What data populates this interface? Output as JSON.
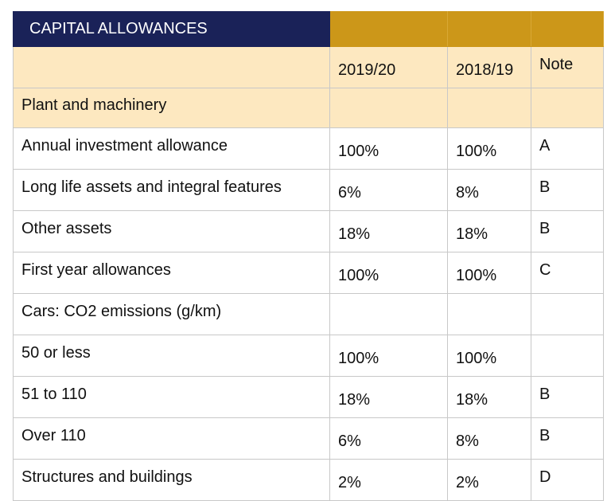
{
  "title": "CAPITAL ALLOWANCES",
  "headers": [
    "",
    "2019/20",
    "2018/19",
    "Note"
  ],
  "section": "Plant and machinery",
  "colors": {
    "title_bg": "#1a2258",
    "accent": "#cc9719",
    "subheader_bg": "#fde8c0"
  },
  "rows": [
    {
      "label": "Annual investment allowance",
      "y1": "100%",
      "y2": "100%",
      "note": "A"
    },
    {
      "label": "Long life assets and integral features",
      "y1": "6%",
      "y2": "8%",
      "note": "B"
    },
    {
      "label": "Other assets",
      "y1": "18%",
      "y2": "18%",
      "note": "B"
    },
    {
      "label": "First year allowances",
      "y1": "100%",
      "y2": "100%",
      "note": "C"
    },
    {
      "label": "Cars: CO2 emissions (g/km)",
      "y1": "",
      "y2": "",
      "note": ""
    },
    {
      "label": "50 or less",
      "y1": "100%",
      "y2": "100%",
      "note": ""
    },
    {
      "label": "51 to 110",
      "y1": "18%",
      "y2": "18%",
      "note": "B"
    },
    {
      "label": "Over 110",
      "y1": "6%",
      "y2": "8%",
      "note": "B"
    },
    {
      "label": "Structures and buildings",
      "y1": "2%",
      "y2": "2%",
      "note": "D"
    }
  ]
}
